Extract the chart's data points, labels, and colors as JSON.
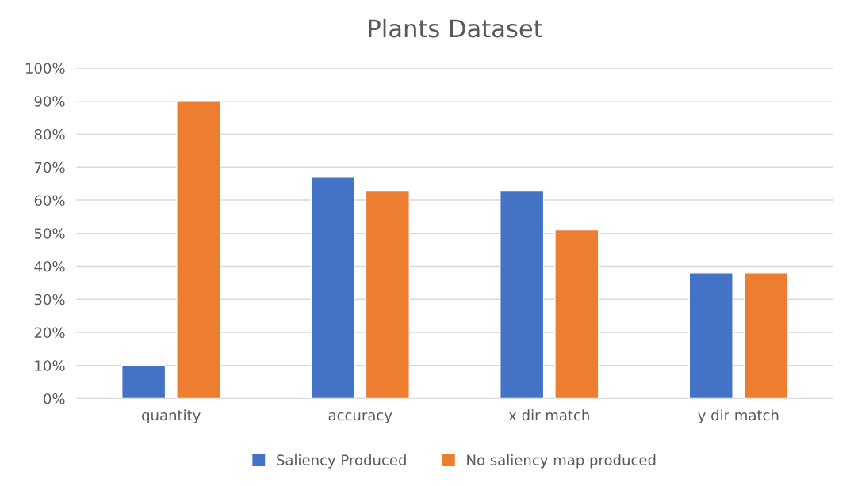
{
  "chart_data": {
    "type": "bar",
    "title": "Plants Dataset",
    "categories": [
      "quantity",
      "accuracy",
      "x dir match",
      "y dir match"
    ],
    "series": [
      {
        "name": "Saliency Produced",
        "color": "#4472c4",
        "values": [
          10,
          67,
          63,
          38
        ]
      },
      {
        "name": "No saliency map produced",
        "color": "#ed7d31",
        "values": [
          90,
          63,
          51,
          38
        ]
      }
    ],
    "ylim": [
      0,
      100
    ],
    "yticks": [
      {
        "value": 0,
        "label": "0%"
      },
      {
        "value": 10,
        "label": "10%"
      },
      {
        "value": 20,
        "label": "20%"
      },
      {
        "value": 30,
        "label": "30%"
      },
      {
        "value": 40,
        "label": "40%"
      },
      {
        "value": 50,
        "label": "50%"
      },
      {
        "value": 60,
        "label": "60%"
      },
      {
        "value": 70,
        "label": "70%"
      },
      {
        "value": 80,
        "label": "80%"
      },
      {
        "value": 90,
        "label": "90%"
      },
      {
        "value": 100,
        "label": "100%"
      }
    ],
    "grid": "y",
    "legend": "bottom"
  }
}
